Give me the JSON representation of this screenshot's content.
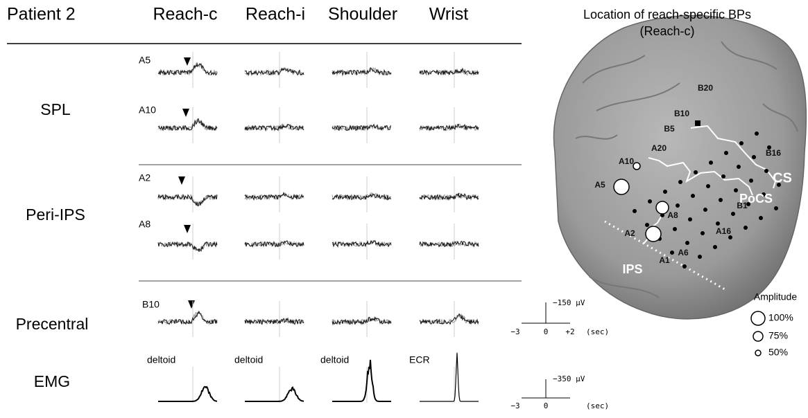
{
  "header": {
    "patient": "Patient 2",
    "columns": [
      "Reach-c",
      "Reach-i",
      "Shoulder",
      "Wrist"
    ]
  },
  "rows": [
    {
      "label": "SPL",
      "electrodes": [
        "A5",
        "A10"
      ]
    },
    {
      "label": "Peri-IPS",
      "electrodes": [
        "A2",
        "A8"
      ]
    },
    {
      "label": "Precentral",
      "electrodes": [
        "B10"
      ]
    },
    {
      "label": "EMG",
      "muscles": [
        "deltoid",
        "deltoid",
        "deltoid",
        "ECR"
      ]
    }
  ],
  "scale_bars": [
    {
      "amplitude": "−150 μV",
      "times": [
        "−3",
        "0",
        "+2"
      ],
      "unit": "(sec)"
    },
    {
      "amplitude": "−350 μV",
      "times": [
        "−3",
        "0"
      ],
      "unit": "(sec)"
    }
  ],
  "brain": {
    "title": "Location of reach-specific BPs",
    "subtitle": "(Reach-c)",
    "electrode_labels": [
      "A10",
      "A5",
      "A2",
      "A8",
      "A1",
      "A6",
      "A16",
      "B1",
      "B5",
      "B10",
      "B20",
      "B16",
      "A20"
    ],
    "sulci": [
      "CS",
      "PoCS",
      "IPS"
    ]
  },
  "legend": {
    "title": "Amplitude",
    "items": [
      "100%",
      "75%",
      "50%"
    ]
  }
}
